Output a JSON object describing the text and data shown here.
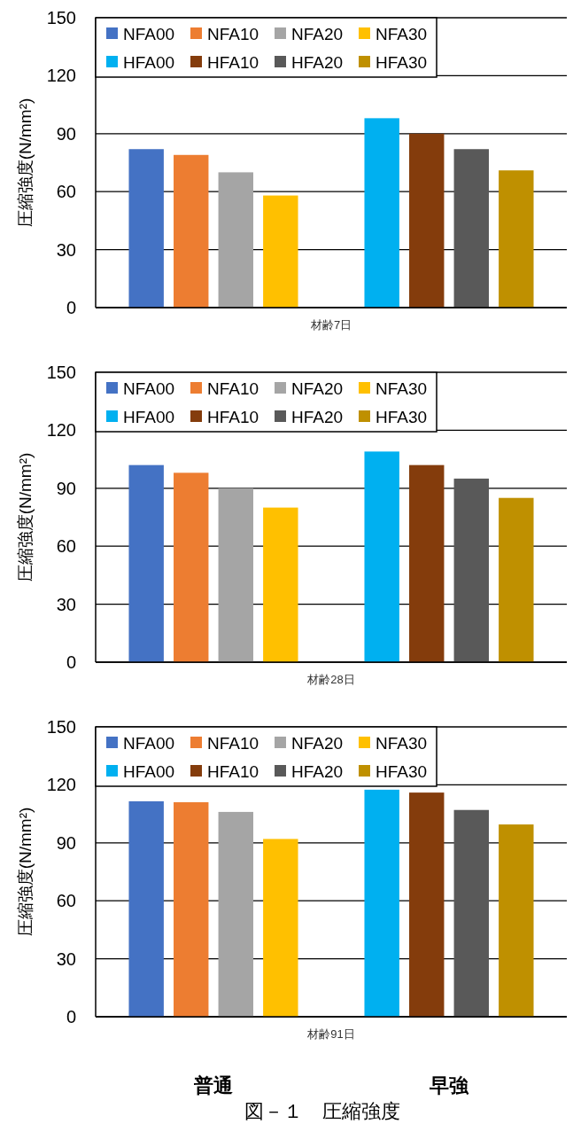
{
  "chart_data": [
    {
      "type": "bar",
      "xlabel": "材齢7日",
      "ylabel": "圧縮強度(N/mm²)",
      "categories": [
        null,
        null
      ],
      "ylim": [
        0,
        150
      ],
      "yticks": [
        0,
        30,
        60,
        90,
        120,
        150
      ],
      "grid": "y",
      "legend": "top left",
      "series": [
        {
          "name": "NFA00",
          "color": "#4472c4",
          "values": [
            82,
            null
          ]
        },
        {
          "name": "NFA10",
          "color": "#ed7d31",
          "values": [
            79,
            null
          ]
        },
        {
          "name": "NFA20",
          "color": "#a5a5a5",
          "values": [
            70,
            null
          ]
        },
        {
          "name": "NFA30",
          "color": "#ffc000",
          "values": [
            58,
            null
          ]
        },
        {
          "name": "HFA00",
          "color": "#00b0f0",
          "values": [
            null,
            98
          ]
        },
        {
          "name": "HFA10",
          "color": "#843c0c",
          "values": [
            null,
            90
          ]
        },
        {
          "name": "HFA20",
          "color": "#595959",
          "values": [
            null,
            82
          ]
        },
        {
          "name": "HFA30",
          "color": "#bf9000",
          "values": [
            null,
            71
          ]
        }
      ]
    },
    {
      "type": "bar",
      "xlabel": "材齢28日",
      "ylabel": "圧縮強度(N/mm²)",
      "categories": [
        null,
        null
      ],
      "ylim": [
        0,
        150
      ],
      "yticks": [
        0,
        30,
        60,
        90,
        120,
        150
      ],
      "grid": "y",
      "legend": "top left",
      "series": [
        {
          "name": "NFA00",
          "color": "#4472c4",
          "values": [
            102,
            null
          ]
        },
        {
          "name": "NFA10",
          "color": "#ed7d31",
          "values": [
            98,
            null
          ]
        },
        {
          "name": "NFA20",
          "color": "#a5a5a5",
          "values": [
            90,
            null
          ]
        },
        {
          "name": "NFA30",
          "color": "#ffc000",
          "values": [
            80,
            null
          ]
        },
        {
          "name": "HFA00",
          "color": "#00b0f0",
          "values": [
            null,
            109
          ]
        },
        {
          "name": "HFA10",
          "color": "#843c0c",
          "values": [
            null,
            102
          ]
        },
        {
          "name": "HFA20",
          "color": "#595959",
          "values": [
            null,
            95
          ]
        },
        {
          "name": "HFA30",
          "color": "#bf9000",
          "values": [
            null,
            85
          ]
        }
      ]
    },
    {
      "type": "bar",
      "xlabel": "材齢91日",
      "ylabel": "圧縮強度(N/mm²)",
      "categories": [
        "普通",
        "早強"
      ],
      "ylim": [
        0,
        150
      ],
      "yticks": [
        0,
        30,
        60,
        90,
        120,
        150
      ],
      "grid": "y",
      "legend": "top left",
      "annotations": [
        "図－１　圧縮強度"
      ],
      "series": [
        {
          "name": "NFA00",
          "color": "#4472c4",
          "values": [
            111.5,
            null
          ]
        },
        {
          "name": "NFA10",
          "color": "#ed7d31",
          "values": [
            111,
            null
          ]
        },
        {
          "name": "NFA20",
          "color": "#a5a5a5",
          "values": [
            106,
            null
          ]
        },
        {
          "name": "NFA30",
          "color": "#ffc000",
          "values": [
            92,
            null
          ]
        },
        {
          "name": "HFA00",
          "color": "#00b0f0",
          "values": [
            null,
            117.5
          ]
        },
        {
          "name": "HFA10",
          "color": "#843c0c",
          "values": [
            null,
            116
          ]
        },
        {
          "name": "HFA20",
          "color": "#595959",
          "values": [
            null,
            107
          ]
        },
        {
          "name": "HFA30",
          "color": "#bf9000",
          "values": [
            null,
            99.5
          ]
        }
      ]
    }
  ]
}
